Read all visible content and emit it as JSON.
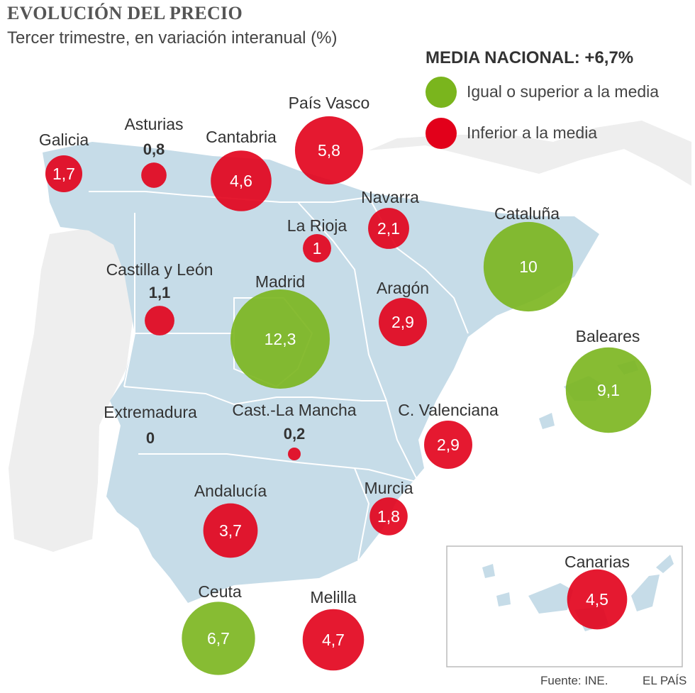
{
  "title": "EVOLUCIÓN DEL PRECIO",
  "subtitle": "Tercer trimestre, en variación interanual (%)",
  "legend": {
    "title": "MEDIA NACIONAL: +6,7%",
    "items": [
      {
        "label": "Igual o superior a la media",
        "color": "#7ab51d"
      },
      {
        "label": "Inferior a la media",
        "color": "#e2001a"
      }
    ]
  },
  "colors": {
    "above": "#7ab51d",
    "below": "#e2001a",
    "map_land": "#c6dce8",
    "map_border": "#ffffff"
  },
  "source": "Fuente: INE.",
  "brand": "EL PAÍS",
  "chart_data": {
    "type": "proportional-symbol-map",
    "title": "EVOLUCIÓN DEL PRECIO",
    "subtitle": "Tercer trimestre, en variación interanual (%)",
    "reference": {
      "label": "MEDIA NACIONAL: +6,7%",
      "value": 6.7
    },
    "regions": [
      {
        "name": "Galicia",
        "value": 1.7,
        "label": "1,7",
        "group": "below"
      },
      {
        "name": "Asturias",
        "value": 0.8,
        "label": "0,8",
        "group": "below"
      },
      {
        "name": "Cantabria",
        "value": 4.6,
        "label": "4,6",
        "group": "below"
      },
      {
        "name": "País Vasco",
        "value": 5.8,
        "label": "5,8",
        "group": "below"
      },
      {
        "name": "Navarra",
        "value": 2.1,
        "label": "2,1",
        "group": "below"
      },
      {
        "name": "La Rioja",
        "value": 1,
        "label": "1",
        "group": "below"
      },
      {
        "name": "Cataluña",
        "value": 10,
        "label": "10",
        "group": "above"
      },
      {
        "name": "Castilla y León",
        "value": 1.1,
        "label": "1,1",
        "group": "below"
      },
      {
        "name": "Madrid",
        "value": 12.3,
        "label": "12,3",
        "group": "above"
      },
      {
        "name": "Aragón",
        "value": 2.9,
        "label": "2,9",
        "group": "below"
      },
      {
        "name": "Baleares",
        "value": 9.1,
        "label": "9,1",
        "group": "above"
      },
      {
        "name": "Extremadura",
        "value": 0,
        "label": "0",
        "group": "below"
      },
      {
        "name": "Cast.-La Mancha",
        "value": 0.2,
        "label": "0,2",
        "group": "below"
      },
      {
        "name": "C. Valenciana",
        "value": 2.9,
        "label": "2,9",
        "group": "below"
      },
      {
        "name": "Andalucía",
        "value": 3.7,
        "label": "3,7",
        "group": "below"
      },
      {
        "name": "Murcia",
        "value": 1.8,
        "label": "1,8",
        "group": "below"
      },
      {
        "name": "Canarias",
        "value": 4.5,
        "label": "4,5",
        "group": "below"
      },
      {
        "name": "Ceuta",
        "value": 6.7,
        "label": "6,7",
        "group": "above"
      },
      {
        "name": "Melilla",
        "value": 4.7,
        "label": "4,7",
        "group": "below"
      }
    ]
  }
}
